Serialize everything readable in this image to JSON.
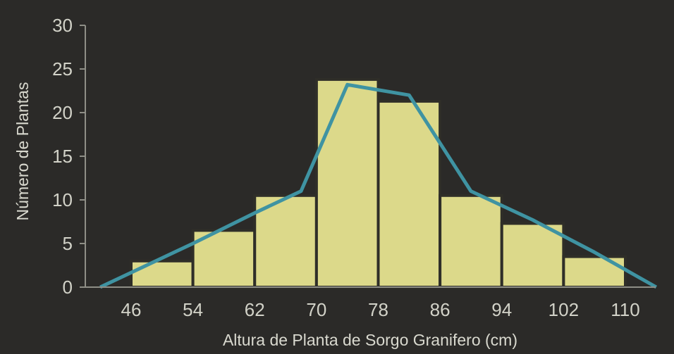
{
  "chart_data": {
    "type": "bar",
    "xlabel": "Altura de Planta de Sorgo Granifero (cm)",
    "ylabel": "Número de Plantas",
    "x_ticks": [
      "46",
      "54",
      "62",
      "70",
      "78",
      "86",
      "94",
      "102",
      "110"
    ],
    "y_ticks": [
      "0",
      "5",
      "10",
      "15",
      "20",
      "25",
      "30"
    ],
    "ylim": [
      0,
      30
    ],
    "grid": false,
    "legend": "none",
    "bars": [
      {
        "bin_start": 46,
        "bin_end": 54,
        "value": 3
      },
      {
        "bin_start": 54,
        "bin_end": 62,
        "value": 6.5
      },
      {
        "bin_start": 62,
        "bin_end": 70,
        "value": 10.5
      },
      {
        "bin_start": 70,
        "bin_end": 78,
        "value": 23.8
      },
      {
        "bin_start": 78,
        "bin_end": 86,
        "value": 21.3
      },
      {
        "bin_start": 86,
        "bin_end": 94,
        "value": 10.5
      },
      {
        "bin_start": 94,
        "bin_end": 102,
        "value": 7.3
      },
      {
        "bin_start": 102,
        "bin_end": 110,
        "value": 3.5
      }
    ],
    "polygon": {
      "x": [
        42,
        54,
        62,
        68,
        74,
        82,
        90,
        98,
        106,
        114
      ],
      "y": [
        0,
        5,
        8.5,
        11,
        23.2,
        22,
        11,
        7.7,
        4,
        0
      ]
    },
    "colors": {
      "bar_fill": "#dcd98a",
      "bar_edge": "#2f2e28",
      "line": "#3f93a2",
      "axis": "#8e8e86",
      "text": "#d2d2c8"
    }
  }
}
